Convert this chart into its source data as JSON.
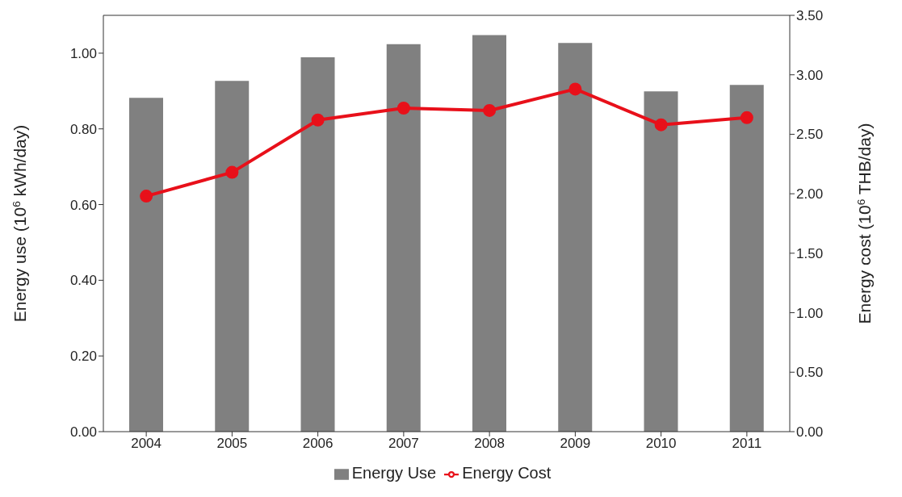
{
  "chart_data": {
    "type": "bar",
    "categories": [
      "2004",
      "2005",
      "2006",
      "2007",
      "2008",
      "2009",
      "2010",
      "2011"
    ],
    "series": [
      {
        "name": "Energy Use",
        "color": "#808080",
        "values": [
          0.882,
          0.927,
          0.989,
          1.024,
          1.048,
          1.027,
          0.899,
          0.916
        ]
      },
      {
        "name": "Energy Cost",
        "type": "line",
        "axis": "y2",
        "color": "#e8101a",
        "marker": "circle",
        "values": [
          1.98,
          2.18,
          2.62,
          2.72,
          2.7,
          2.88,
          2.58,
          2.64
        ]
      }
    ],
    "ylabel": "Energy use  (10$^{6}$ kWh/day)",
    "y2label": "Energy cost  (10$^{6}$ THB/day)",
    "ylim": [
      0,
      1.1
    ],
    "yticks": [
      {
        "value": 0,
        "label": "0.00"
      },
      {
        "value": 0.2,
        "label": "0.20"
      },
      {
        "value": 0.4,
        "label": "0.40"
      },
      {
        "value": 0.6,
        "label": "0.60"
      },
      {
        "value": 0.8,
        "label": "0.80"
      },
      {
        "value": 1,
        "label": "1.00"
      }
    ],
    "y2lim": [
      0,
      3.5
    ],
    "y2ticks": [
      {
        "value": 0,
        "label": "0.00"
      },
      {
        "value": 0.5,
        "label": "0.50"
      },
      {
        "value": 1,
        "label": "1.00"
      },
      {
        "value": 1.5,
        "label": "1.50"
      },
      {
        "value": 2,
        "label": "2.00"
      },
      {
        "value": 2.5,
        "label": "2.50"
      },
      {
        "value": 3,
        "label": "3.00"
      },
      {
        "value": 3.5,
        "label": "3.50"
      }
    ],
    "grid": false,
    "legend": "bottom"
  }
}
